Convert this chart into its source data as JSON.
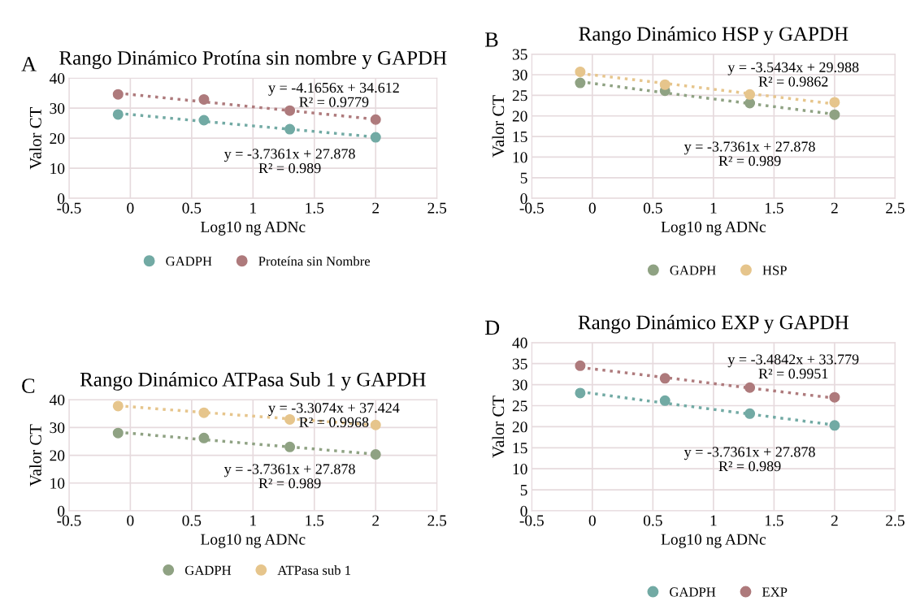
{
  "chart_data": [
    {
      "type": "scatter",
      "title": "Rango Dinámico Protína sin nombre y GAPDH",
      "xlabel": "Log10 ng ADNc",
      "ylabel": "Valor CT",
      "x": [
        -0.1,
        0.6,
        1.3,
        2.0
      ],
      "xlim": [
        -0.5,
        2.5
      ],
      "xticks": [
        -0.5,
        0,
        0.5,
        1,
        1.5,
        2,
        2.5
      ],
      "ylim": [
        0,
        40
      ],
      "yticks": [
        0,
        10,
        20,
        30,
        40
      ],
      "grid": true,
      "legend": "bottom",
      "marker": "circle",
      "series": [
        {
          "name": "GADPH",
          "color": "#72aaa4",
          "values": [
            27.9,
            26.0,
            23.0,
            20.3
          ]
        },
        {
          "name": "Proteína sin Nombre",
          "color": "#ae7a7c",
          "values": [
            34.6,
            32.9,
            29.2,
            26.2
          ]
        },
        {
          "type": "line",
          "line_style": "dotted",
          "marker": "none",
          "color": "#72aaa4",
          "x": [
            -0.1,
            0.6,
            1.3,
            2.0
          ],
          "values": [
            28.3,
            25.6,
            23.0,
            20.4
          ]
        },
        {
          "type": "line",
          "line_style": "dotted",
          "marker": "none",
          "color": "#ae7a7c",
          "x": [
            -0.1,
            0.6,
            1.3,
            2.0
          ],
          "values": [
            35.0,
            32.1,
            29.2,
            26.3
          ]
        }
      ],
      "annotations": [
        "A",
        "y = -4.1656x + 34.612\nR² = 0.9779",
        "y = -3.7361x + 27.878\nR² = 0.989"
      ]
    },
    {
      "type": "scatter",
      "title": "Rango Dinámico HSP y GAPDH",
      "xlabel": "Log10 ng ADNc",
      "ylabel": "Valor CT",
      "x": [
        -0.1,
        0.6,
        1.3,
        2.0
      ],
      "xlim": [
        -0.5,
        2.5
      ],
      "xticks": [
        -0.5,
        0,
        0.5,
        1,
        1.5,
        2,
        2.5
      ],
      "ylim": [
        0,
        35
      ],
      "yticks": [
        0,
        5,
        10,
        15,
        20,
        25,
        30,
        35
      ],
      "grid": true,
      "legend": "bottom",
      "marker": "circle",
      "series": [
        {
          "name": "GADPH",
          "color": "#8fa283",
          "values": [
            28.0,
            26.1,
            23.1,
            20.3
          ]
        },
        {
          "name": "HSP",
          "color": "#e6c58c",
          "values": [
            30.7,
            27.6,
            25.2,
            23.3
          ]
        },
        {
          "type": "line",
          "line_style": "dotted",
          "marker": "none",
          "color": "#8fa283",
          "x": [
            -0.1,
            0.6,
            1.3,
            2.0
          ],
          "values": [
            28.3,
            25.6,
            23.0,
            20.4
          ]
        },
        {
          "type": "line",
          "line_style": "dotted",
          "marker": "none",
          "color": "#e6c58c",
          "x": [
            -0.1,
            0.6,
            1.3,
            2.0
          ],
          "values": [
            30.3,
            27.9,
            25.4,
            22.9
          ]
        }
      ],
      "annotations": [
        "B",
        "y = -3.5434x + 29.988\nR² = 0.9862",
        "y = -3.7361x + 27.878\nR² = 0.989"
      ]
    },
    {
      "type": "scatter",
      "title": "Rango Dinámico ATPasa Sub 1 y GAPDH",
      "xlabel": "Log10 ng ADNc",
      "ylabel": "Valor CT",
      "x": [
        -0.1,
        0.6,
        1.3,
        2.0
      ],
      "xlim": [
        -0.5,
        2.5
      ],
      "xticks": [
        -0.5,
        0,
        0.5,
        1,
        1.5,
        2,
        2.5
      ],
      "ylim": [
        0,
        40
      ],
      "yticks": [
        0,
        10,
        20,
        30,
        40
      ],
      "grid": true,
      "legend": "bottom",
      "marker": "circle",
      "series": [
        {
          "name": "GADPH",
          "color": "#8fa283",
          "values": [
            28.0,
            26.2,
            23.0,
            20.3
          ]
        },
        {
          "name": "ATPasa sub 1",
          "color": "#e6c58c",
          "values": [
            37.7,
            35.3,
            32.9,
            30.9
          ]
        },
        {
          "type": "line",
          "line_style": "dotted",
          "marker": "none",
          "color": "#8fa283",
          "x": [
            -0.1,
            0.6,
            1.3,
            2.0
          ],
          "values": [
            28.3,
            25.6,
            23.0,
            20.4
          ]
        },
        {
          "type": "line",
          "line_style": "dotted",
          "marker": "none",
          "color": "#e6c58c",
          "x": [
            -0.1,
            0.6,
            1.3,
            2.0
          ],
          "values": [
            37.8,
            35.4,
            33.1,
            30.8
          ]
        }
      ],
      "annotations": [
        "C",
        "y = -3.3074x + 37.424\nR² = 0.9968",
        "y = -3.7361x + 27.878\nR² = 0.989"
      ]
    },
    {
      "type": "scatter",
      "title": "Rango Dinámico EXP y GAPDH",
      "xlabel": "Log10 ng ADNc",
      "ylabel": "Valor CT",
      "x": [
        -0.1,
        0.6,
        1.3,
        2.0
      ],
      "xlim": [
        -0.5,
        2.5
      ],
      "xticks": [
        -0.5,
        0,
        0.5,
        1,
        1.5,
        2,
        2.5
      ],
      "ylim": [
        0,
        40
      ],
      "yticks": [
        0,
        5,
        10,
        15,
        20,
        25,
        30,
        35,
        40
      ],
      "grid": true,
      "legend": "bottom",
      "marker": "circle",
      "series": [
        {
          "name": "GADPH",
          "color": "#72aaa4",
          "values": [
            28.0,
            26.2,
            23.1,
            20.3
          ]
        },
        {
          "name": "EXP",
          "color": "#ae7a7c",
          "values": [
            34.5,
            31.5,
            29.3,
            27.0
          ]
        },
        {
          "type": "line",
          "line_style": "dotted",
          "marker": "none",
          "color": "#72aaa4",
          "x": [
            -0.1,
            0.6,
            1.3,
            2.0
          ],
          "values": [
            28.3,
            25.6,
            23.0,
            20.4
          ]
        },
        {
          "type": "line",
          "line_style": "dotted",
          "marker": "none",
          "color": "#ae7a7c",
          "x": [
            -0.1,
            0.6,
            1.3,
            2.0
          ],
          "values": [
            34.1,
            31.7,
            29.2,
            26.8
          ]
        }
      ],
      "annotations": [
        "D",
        "y = -3.4842x + 33.779\nR² = 0.9951",
        "y = -3.7361x + 27.878\nR² = 0.989"
      ]
    }
  ]
}
